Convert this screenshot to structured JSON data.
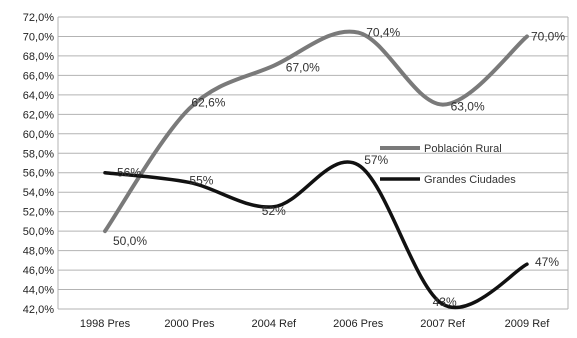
{
  "chart_data": {
    "type": "line",
    "title": "",
    "xlabel": "",
    "ylabel": "",
    "categories": [
      "1998 Pres",
      "2000 Pres",
      "2004 Ref",
      "2006 Pres",
      "2007 Ref",
      "2009 Ref"
    ],
    "ylim": [
      42,
      72
    ],
    "ytick_step": 2,
    "ytick_labels": [
      "42,0%",
      "44,0%",
      "46,0%",
      "48,0%",
      "50,0%",
      "52,0%",
      "54,0%",
      "56,0%",
      "58,0%",
      "60,0%",
      "62,0%",
      "64,0%",
      "66,0%",
      "68,0%",
      "70,0%",
      "72,0%"
    ],
    "grid": true,
    "smooth": true,
    "legend_position": "right",
    "series": [
      {
        "name": "Población Rural",
        "color": "#7a7a7a",
        "values": [
          50.0,
          62.6,
          67.0,
          70.4,
          63.0,
          70.0
        ],
        "labels": [
          "50,0%",
          "62,6%",
          "67,0%",
          "70,4%",
          "63,0%",
          "70,0%"
        ]
      },
      {
        "name": "Grandes Ciudades",
        "color": "#111111",
        "values": [
          56,
          55,
          52.5,
          56.8,
          42.5,
          46.6
        ],
        "labels": [
          "56%",
          "55%",
          "52%",
          "57%",
          "43%",
          "47%"
        ]
      }
    ]
  }
}
